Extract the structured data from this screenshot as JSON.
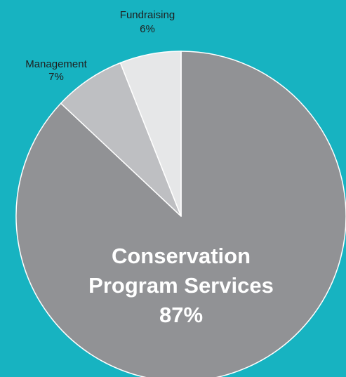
{
  "chart_data": {
    "type": "pie",
    "title": "",
    "slices": [
      {
        "label": "Conservation Program Services",
        "label_lines": [
          "Conservation",
          "Program Services"
        ],
        "value": 87,
        "value_text": "87%",
        "color": "#919295"
      },
      {
        "label": "Management",
        "label_lines": [
          "Management"
        ],
        "value": 7,
        "value_text": "7%",
        "color": "#bebfc2"
      },
      {
        "label": "Fundraising",
        "label_lines": [
          "Fundraising"
        ],
        "value": 6,
        "value_text": "6%",
        "color": "#e6e7e8"
      }
    ],
    "start_angle_deg": 0,
    "direction": "clockwise",
    "slice_border_color": "#ffffff",
    "background_color": "#17b3c1"
  }
}
